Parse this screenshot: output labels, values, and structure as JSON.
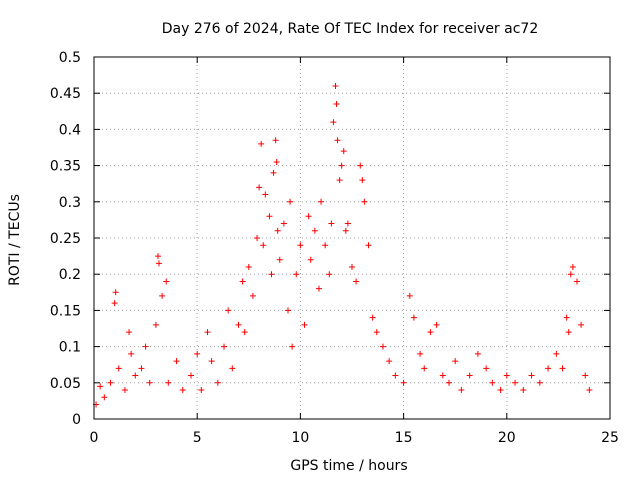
{
  "chart_data": {
    "type": "scatter",
    "title": "Day 276 of 2024, Rate Of TEC Index for receiver ac72",
    "xlabel": "GPS time / hours",
    "ylabel": "ROTI / TECUs",
    "xlim": [
      0,
      25
    ],
    "ylim": [
      0,
      0.5
    ],
    "grid": true,
    "marker": "+",
    "series_color": "#ff0000",
    "x_ticks": [
      "0",
      "5",
      "10",
      "15",
      "20",
      "25"
    ],
    "y_ticks": [
      "0",
      "0.05",
      "0.1",
      "0.15",
      "0.2",
      "0.25",
      "0.3",
      "0.35",
      "0.4",
      "0.45",
      "0.5"
    ],
    "series": [
      {
        "name": "ROTI",
        "x": [
          0.1,
          0.3,
          0.5,
          0.8,
          1.0,
          1.05,
          1.2,
          1.5,
          1.7,
          1.8,
          2.0,
          2.3,
          2.5,
          2.7,
          3.0,
          3.1,
          3.15,
          3.3,
          3.5,
          3.6,
          4.0,
          4.3,
          4.7,
          5.0,
          5.2,
          5.5,
          5.7,
          6.0,
          6.3,
          6.5,
          6.7,
          7.0,
          7.2,
          7.3,
          7.5,
          7.7,
          7.9,
          8.0,
          8.1,
          8.2,
          8.3,
          8.5,
          8.6,
          8.7,
          8.8,
          8.85,
          8.9,
          9.0,
          9.2,
          9.4,
          9.5,
          9.6,
          9.8,
          10.0,
          10.2,
          10.4,
          10.5,
          10.7,
          10.9,
          11.0,
          11.2,
          11.4,
          11.5,
          11.6,
          11.7,
          11.75,
          11.8,
          11.9,
          12.0,
          12.1,
          12.2,
          12.3,
          12.5,
          12.7,
          12.9,
          13.0,
          13.1,
          13.3,
          13.5,
          13.7,
          14.0,
          14.3,
          14.6,
          15.0,
          15.3,
          15.5,
          15.8,
          16.0,
          16.3,
          16.6,
          16.9,
          17.2,
          17.5,
          17.8,
          18.2,
          18.6,
          19.0,
          19.3,
          19.7,
          20.0,
          20.4,
          20.8,
          21.2,
          21.6,
          22.0,
          22.4,
          22.7,
          22.9,
          23.0,
          23.1,
          23.2,
          23.4,
          23.6,
          23.8,
          24.0
        ],
        "y": [
          0.02,
          0.045,
          0.03,
          0.05,
          0.16,
          0.175,
          0.07,
          0.04,
          0.12,
          0.09,
          0.06,
          0.07,
          0.1,
          0.05,
          0.13,
          0.225,
          0.215,
          0.17,
          0.19,
          0.05,
          0.08,
          0.04,
          0.06,
          0.09,
          0.04,
          0.12,
          0.08,
          0.05,
          0.1,
          0.15,
          0.07,
          0.13,
          0.19,
          0.12,
          0.21,
          0.17,
          0.25,
          0.32,
          0.38,
          0.24,
          0.31,
          0.28,
          0.2,
          0.34,
          0.385,
          0.355,
          0.26,
          0.22,
          0.27,
          0.15,
          0.3,
          0.1,
          0.2,
          0.24,
          0.13,
          0.28,
          0.22,
          0.26,
          0.18,
          0.3,
          0.24,
          0.2,
          0.27,
          0.41,
          0.46,
          0.435,
          0.385,
          0.33,
          0.35,
          0.37,
          0.26,
          0.27,
          0.21,
          0.19,
          0.35,
          0.33,
          0.3,
          0.24,
          0.14,
          0.12,
          0.1,
          0.08,
          0.06,
          0.05,
          0.17,
          0.14,
          0.09,
          0.07,
          0.12,
          0.13,
          0.06,
          0.05,
          0.08,
          0.04,
          0.06,
          0.09,
          0.07,
          0.05,
          0.04,
          0.06,
          0.05,
          0.04,
          0.06,
          0.05,
          0.07,
          0.09,
          0.07,
          0.14,
          0.12,
          0.2,
          0.21,
          0.19,
          0.13,
          0.06,
          0.04
        ]
      }
    ]
  }
}
